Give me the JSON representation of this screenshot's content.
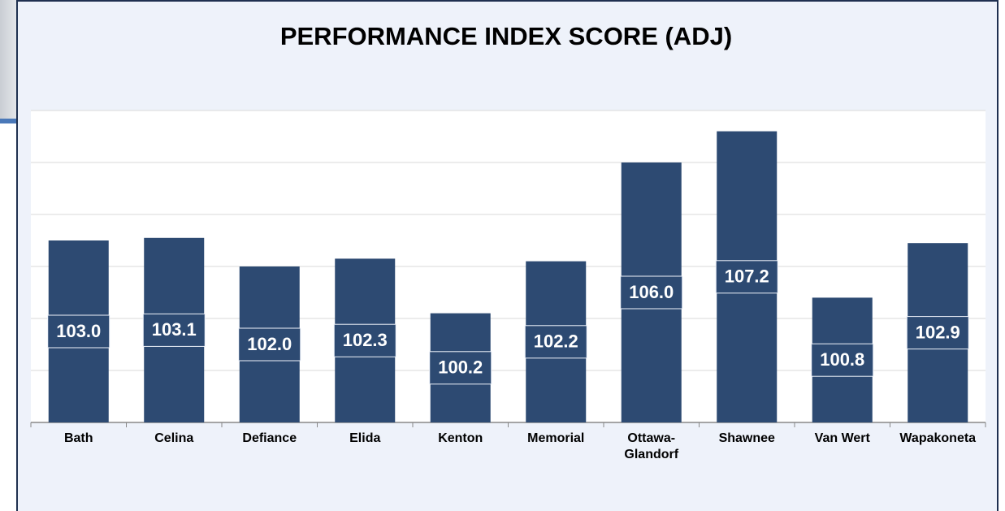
{
  "chart_data": {
    "type": "bar",
    "title": "PERFORMANCE INDEX SCORE (ADJ)",
    "categories": [
      "Bath",
      "Celina",
      "Defiance",
      "Elida",
      "Kenton",
      "Memorial",
      "Ottawa-Glandorf",
      "Shawnee",
      "Van Wert",
      "Wapakoneta"
    ],
    "values": [
      103.0,
      103.1,
      102.0,
      102.3,
      100.2,
      102.2,
      106.0,
      107.2,
      100.8,
      102.9
    ],
    "value_labels": [
      "103.0",
      "103.1",
      "102.0",
      "102.3",
      "100.2",
      "102.2",
      "106.0",
      "107.2",
      "100.8",
      "102.9"
    ],
    "color": "#2d4a72",
    "ylim": [
      96,
      108
    ],
    "yticks": [
      96,
      98,
      100,
      102,
      104,
      106,
      108
    ],
    "grid": true
  }
}
